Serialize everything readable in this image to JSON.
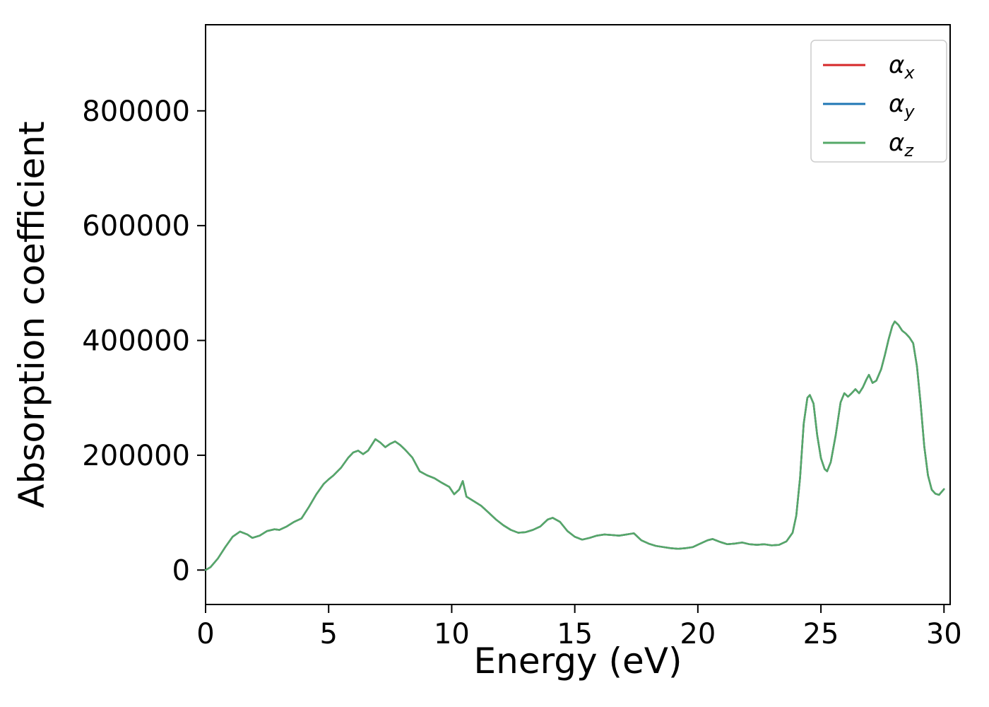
{
  "figure": {
    "background": "#ffffff",
    "text_color": "#000000",
    "spine_color": "#000000"
  },
  "chart_data": {
    "type": "line",
    "title": "",
    "xlabel": "Energy (eV)",
    "ylabel": "Absorption coefficient",
    "xlim": [
      0,
      30.25
    ],
    "ylim": [
      -60000,
      950000
    ],
    "xticks": [
      0,
      5,
      10,
      15,
      20,
      25,
      30
    ],
    "yticks": [
      0,
      200000,
      400000,
      600000,
      800000
    ],
    "grid": false,
    "legend": {
      "position": "upper right"
    },
    "series": [
      {
        "name": "alpha_x",
        "label_base": "α",
        "label_sub": "x",
        "color": "#d62728"
      },
      {
        "name": "alpha_y",
        "label_base": "α",
        "label_sub": "y",
        "color": "#1f77b4"
      },
      {
        "name": "alpha_z",
        "label_base": "α",
        "label_sub": "z",
        "color": "#55a868"
      }
    ],
    "series_overlap_note": "All three series (α_x, α_y, α_z) overlap exactly; only the green α_z curve is visible on top",
    "points": [
      [
        0,
        0
      ],
      [
        0.2,
        5000
      ],
      [
        0.5,
        20000
      ],
      [
        0.8,
        40000
      ],
      [
        1.1,
        58000
      ],
      [
        1.4,
        67000
      ],
      [
        1.7,
        62000
      ],
      [
        1.9,
        56000
      ],
      [
        2.2,
        60000
      ],
      [
        2.5,
        68000
      ],
      [
        2.8,
        71000
      ],
      [
        3.0,
        70000
      ],
      [
        3.3,
        76000
      ],
      [
        3.6,
        84000
      ],
      [
        3.9,
        90000
      ],
      [
        4.2,
        110000
      ],
      [
        4.5,
        132000
      ],
      [
        4.8,
        150000
      ],
      [
        5.0,
        158000
      ],
      [
        5.2,
        165000
      ],
      [
        5.5,
        178000
      ],
      [
        5.8,
        196000
      ],
      [
        6.0,
        205000
      ],
      [
        6.2,
        208000
      ],
      [
        6.4,
        202000
      ],
      [
        6.6,
        208000
      ],
      [
        6.9,
        228000
      ],
      [
        7.1,
        222000
      ],
      [
        7.3,
        214000
      ],
      [
        7.5,
        220000
      ],
      [
        7.7,
        224000
      ],
      [
        7.9,
        218000
      ],
      [
        8.1,
        210000
      ],
      [
        8.4,
        196000
      ],
      [
        8.7,
        172000
      ],
      [
        9.0,
        165000
      ],
      [
        9.3,
        160000
      ],
      [
        9.6,
        152000
      ],
      [
        9.9,
        145000
      ],
      [
        10.1,
        132000
      ],
      [
        10.3,
        140000
      ],
      [
        10.45,
        155000
      ],
      [
        10.6,
        128000
      ],
      [
        10.9,
        120000
      ],
      [
        11.2,
        112000
      ],
      [
        11.5,
        100000
      ],
      [
        11.8,
        88000
      ],
      [
        12.1,
        78000
      ],
      [
        12.4,
        70000
      ],
      [
        12.7,
        65000
      ],
      [
        13.0,
        66000
      ],
      [
        13.3,
        70000
      ],
      [
        13.6,
        76000
      ],
      [
        13.9,
        88000
      ],
      [
        14.1,
        91000
      ],
      [
        14.4,
        84000
      ],
      [
        14.7,
        68000
      ],
      [
        15.0,
        58000
      ],
      [
        15.3,
        53000
      ],
      [
        15.6,
        56000
      ],
      [
        15.9,
        60000
      ],
      [
        16.2,
        62000
      ],
      [
        16.5,
        61000
      ],
      [
        16.8,
        60000
      ],
      [
        17.1,
        62000
      ],
      [
        17.4,
        64000
      ],
      [
        17.7,
        52000
      ],
      [
        18.0,
        46000
      ],
      [
        18.3,
        42000
      ],
      [
        18.6,
        40000
      ],
      [
        18.9,
        38000
      ],
      [
        19.2,
        37000
      ],
      [
        19.5,
        38000
      ],
      [
        19.8,
        40000
      ],
      [
        20.1,
        46000
      ],
      [
        20.4,
        52000
      ],
      [
        20.6,
        54000
      ],
      [
        20.9,
        49000
      ],
      [
        21.2,
        45000
      ],
      [
        21.5,
        46000
      ],
      [
        21.8,
        48000
      ],
      [
        22.1,
        45000
      ],
      [
        22.4,
        44000
      ],
      [
        22.7,
        45000
      ],
      [
        23.0,
        43000
      ],
      [
        23.3,
        44000
      ],
      [
        23.6,
        50000
      ],
      [
        23.85,
        65000
      ],
      [
        24.0,
        95000
      ],
      [
        24.15,
        160000
      ],
      [
        24.3,
        255000
      ],
      [
        24.45,
        300000
      ],
      [
        24.55,
        305000
      ],
      [
        24.7,
        290000
      ],
      [
        24.85,
        235000
      ],
      [
        25.0,
        195000
      ],
      [
        25.15,
        176000
      ],
      [
        25.25,
        172000
      ],
      [
        25.4,
        188000
      ],
      [
        25.6,
        235000
      ],
      [
        25.8,
        292000
      ],
      [
        25.95,
        308000
      ],
      [
        26.1,
        302000
      ],
      [
        26.25,
        308000
      ],
      [
        26.4,
        315000
      ],
      [
        26.55,
        308000
      ],
      [
        26.7,
        318000
      ],
      [
        26.85,
        332000
      ],
      [
        26.95,
        340000
      ],
      [
        27.1,
        326000
      ],
      [
        27.25,
        330000
      ],
      [
        27.45,
        350000
      ],
      [
        27.6,
        375000
      ],
      [
        27.75,
        402000
      ],
      [
        27.9,
        425000
      ],
      [
        28.0,
        433000
      ],
      [
        28.15,
        427000
      ],
      [
        28.3,
        417000
      ],
      [
        28.45,
        412000
      ],
      [
        28.6,
        405000
      ],
      [
        28.75,
        395000
      ],
      [
        28.9,
        355000
      ],
      [
        29.05,
        290000
      ],
      [
        29.2,
        215000
      ],
      [
        29.35,
        165000
      ],
      [
        29.5,
        140000
      ],
      [
        29.65,
        133000
      ],
      [
        29.8,
        131000
      ],
      [
        30.0,
        141000
      ]
    ]
  }
}
